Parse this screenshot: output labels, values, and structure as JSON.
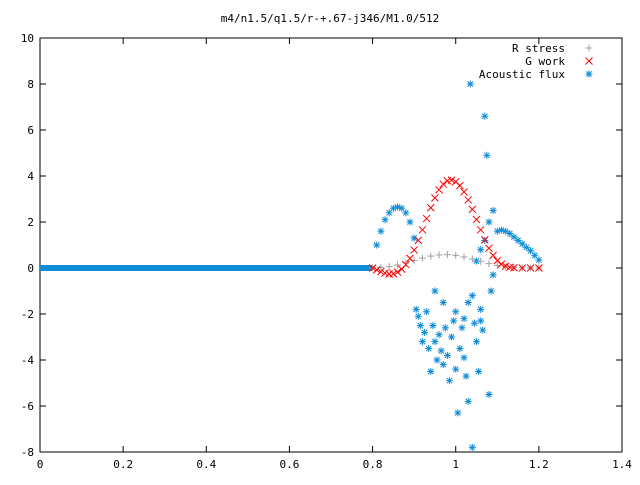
{
  "chart_data": {
    "type": "scatter",
    "title": "m4/n1.5/q1.5/r-+.67-j346/M1.0/512",
    "xlabel": "",
    "ylabel": "",
    "xlim": [
      0,
      1.4
    ],
    "ylim": [
      -8,
      10
    ],
    "x_ticks": [
      "0",
      "0.2",
      "0.4",
      "0.6",
      "0.8",
      "1",
      "1.2",
      "1.4"
    ],
    "y_ticks": [
      "-8",
      "-6",
      "-4",
      "-2",
      "0",
      "2",
      "4",
      "6",
      "8",
      "10"
    ],
    "grid": false,
    "legend_position": "top-right",
    "series": [
      {
        "name": "R stress",
        "marker": "plus",
        "color": "#a0a0a0",
        "points": [
          [
            0.8,
            0.0
          ],
          [
            0.82,
            0.02
          ],
          [
            0.84,
            0.06
          ],
          [
            0.86,
            0.13
          ],
          [
            0.88,
            0.22
          ],
          [
            0.9,
            0.33
          ],
          [
            0.92,
            0.43
          ],
          [
            0.94,
            0.52
          ],
          [
            0.96,
            0.57
          ],
          [
            0.98,
            0.58
          ],
          [
            1.0,
            0.55
          ],
          [
            1.02,
            0.48
          ],
          [
            1.04,
            0.39
          ],
          [
            1.06,
            0.29
          ],
          [
            1.08,
            0.19
          ],
          [
            1.1,
            0.11
          ],
          [
            1.12,
            0.05
          ],
          [
            1.14,
            0.02
          ],
          [
            1.16,
            0.01
          ],
          [
            1.18,
            0.0
          ],
          [
            1.2,
            0.0
          ]
        ]
      },
      {
        "name": "G work",
        "marker": "cross",
        "color": "#ff0000",
        "points": [
          [
            0.8,
            0.0
          ],
          [
            0.81,
            -0.08
          ],
          [
            0.82,
            -0.16
          ],
          [
            0.83,
            -0.22
          ],
          [
            0.84,
            -0.26
          ],
          [
            0.85,
            -0.25
          ],
          [
            0.86,
            -0.18
          ],
          [
            0.87,
            -0.05
          ],
          [
            0.88,
            0.15
          ],
          [
            0.89,
            0.42
          ],
          [
            0.9,
            0.78
          ],
          [
            0.91,
            1.2
          ],
          [
            0.92,
            1.66
          ],
          [
            0.93,
            2.15
          ],
          [
            0.94,
            2.62
          ],
          [
            0.95,
            3.05
          ],
          [
            0.96,
            3.4
          ],
          [
            0.97,
            3.65
          ],
          [
            0.98,
            3.79
          ],
          [
            0.99,
            3.82
          ],
          [
            1.0,
            3.75
          ],
          [
            1.01,
            3.58
          ],
          [
            1.02,
            3.31
          ],
          [
            1.03,
            2.96
          ],
          [
            1.04,
            2.55
          ],
          [
            1.05,
            2.11
          ],
          [
            1.06,
            1.66
          ],
          [
            1.07,
            1.23
          ],
          [
            1.08,
            0.86
          ],
          [
            1.09,
            0.55
          ],
          [
            1.1,
            0.32
          ],
          [
            1.11,
            0.17
          ],
          [
            1.12,
            0.08
          ],
          [
            1.13,
            0.03
          ],
          [
            1.14,
            0.01
          ],
          [
            1.16,
            0.0
          ],
          [
            1.18,
            0.0
          ],
          [
            1.2,
            0.0
          ]
        ]
      },
      {
        "name": "Acoustic flux",
        "marker": "star",
        "color": "#0e8bd6",
        "points": [
          [
            0.81,
            1.0
          ],
          [
            0.82,
            1.6
          ],
          [
            0.83,
            2.1
          ],
          [
            0.84,
            2.4
          ],
          [
            0.85,
            2.6
          ],
          [
            0.86,
            2.65
          ],
          [
            0.87,
            2.6
          ],
          [
            0.88,
            2.4
          ],
          [
            0.89,
            2.0
          ],
          [
            0.9,
            1.3
          ],
          [
            0.905,
            -1.8
          ],
          [
            0.91,
            -2.1
          ],
          [
            0.915,
            -2.5
          ],
          [
            0.92,
            -3.2
          ],
          [
            0.925,
            -2.8
          ],
          [
            0.93,
            -1.9
          ],
          [
            0.935,
            -3.5
          ],
          [
            0.94,
            -4.5
          ],
          [
            0.945,
            -2.5
          ],
          [
            0.95,
            -3.2
          ],
          [
            0.955,
            -4.0
          ],
          [
            0.96,
            -2.9
          ],
          [
            0.965,
            -3.6
          ],
          [
            0.97,
            -4.2
          ],
          [
            0.975,
            -2.6
          ],
          [
            0.98,
            -3.8
          ],
          [
            0.985,
            -4.9
          ],
          [
            0.99,
            -3.0
          ],
          [
            0.995,
            -2.3
          ],
          [
            1.0,
            -4.4
          ],
          [
            1.005,
            -6.3
          ],
          [
            1.01,
            -3.5
          ],
          [
            1.015,
            -2.6
          ],
          [
            1.02,
            -3.9
          ],
          [
            1.025,
            -4.7
          ],
          [
            1.03,
            -5.8
          ],
          [
            1.035,
            8.0
          ],
          [
            1.04,
            -7.8
          ],
          [
            1.045,
            -2.4
          ],
          [
            1.05,
            -3.2
          ],
          [
            1.055,
            -4.5
          ],
          [
            1.06,
            -1.8
          ],
          [
            1.065,
            -2.7
          ],
          [
            1.07,
            6.6
          ],
          [
            1.075,
            4.9
          ],
          [
            1.08,
            -5.5
          ],
          [
            1.085,
            -1.0
          ],
          [
            1.09,
            -0.3
          ],
          [
            1.07,
            1.2
          ],
          [
            1.06,
            0.8
          ],
          [
            1.05,
            0.3
          ],
          [
            1.08,
            2.0
          ],
          [
            1.09,
            2.5
          ],
          [
            1.1,
            1.6
          ],
          [
            1.11,
            1.65
          ],
          [
            1.12,
            1.6
          ],
          [
            1.13,
            1.5
          ],
          [
            1.14,
            1.35
          ],
          [
            1.15,
            1.2
          ],
          [
            1.16,
            1.05
          ],
          [
            1.17,
            0.9
          ],
          [
            1.18,
            0.75
          ],
          [
            1.19,
            0.55
          ],
          [
            1.2,
            0.35
          ],
          [
            1.0,
            -1.9
          ],
          [
            1.02,
            -2.2
          ],
          [
            0.97,
            -1.5
          ],
          [
            0.95,
            -1.0
          ],
          [
            1.04,
            -1.2
          ],
          [
            1.06,
            -2.3
          ],
          [
            1.03,
            -1.5
          ]
        ],
        "flat_segment": {
          "x_from": 0.0,
          "x_to": 0.8,
          "y": 0.0
        }
      }
    ]
  }
}
